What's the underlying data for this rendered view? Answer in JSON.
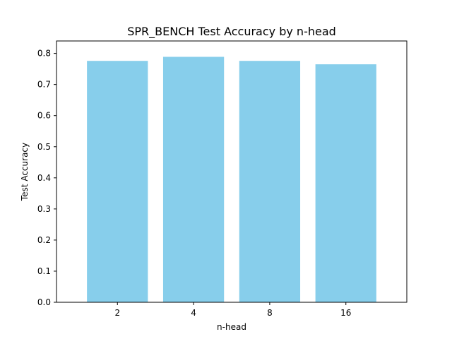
{
  "chart_data": {
    "type": "bar",
    "title": "SPR_BENCH Test Accuracy by n-head",
    "xlabel": "n-head",
    "ylabel": "Test Accuracy",
    "categories": [
      "2",
      "4",
      "8",
      "16"
    ],
    "values": [
      0.776,
      0.789,
      0.776,
      0.765
    ],
    "ylim": [
      0,
      0.84
    ],
    "yticks": [
      0.0,
      0.1,
      0.2,
      0.3,
      0.4,
      0.5,
      0.6,
      0.7,
      0.8
    ],
    "ytick_labels": [
      "0.0",
      "0.1",
      "0.2",
      "0.3",
      "0.4",
      "0.5",
      "0.6",
      "0.7",
      "0.8"
    ],
    "bar_color": "#87ceeb",
    "grid": false,
    "legend": "none"
  }
}
